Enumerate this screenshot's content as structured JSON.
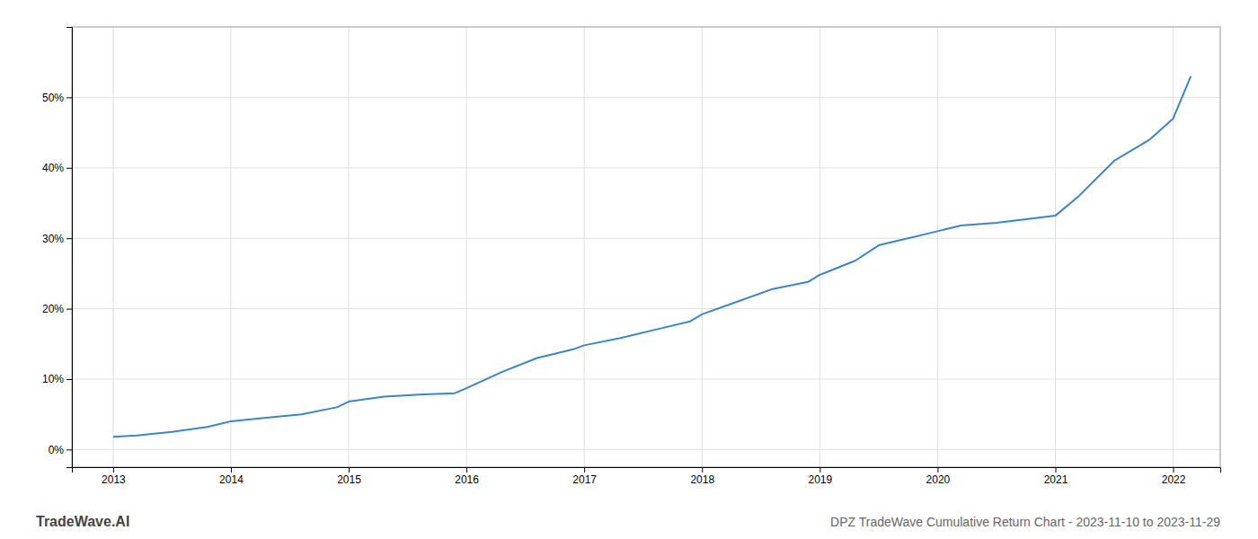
{
  "chart_data": {
    "type": "line",
    "title": "DPZ TradeWave Cumulative Return Chart - 2023-11-10 to 2023-11-29",
    "annotations": [
      "TradeWave.AI"
    ],
    "color": "#3a86c8",
    "grid": true,
    "x": [
      2013.0,
      2013.2,
      2013.5,
      2013.8,
      2014.0,
      2014.3,
      2014.6,
      2014.9,
      2015.0,
      2015.3,
      2015.6,
      2015.9,
      2016.0,
      2016.3,
      2016.6,
      2016.9,
      2017.0,
      2017.3,
      2017.6,
      2017.9,
      2018.0,
      2018.3,
      2018.6,
      2018.9,
      2019.0,
      2019.3,
      2019.5,
      2019.7,
      2020.0,
      2020.2,
      2020.5,
      2020.8,
      2021.0,
      2021.2,
      2021.5,
      2021.8,
      2022.0,
      2022.15
    ],
    "values": [
      0.018,
      0.02,
      0.025,
      0.032,
      0.04,
      0.045,
      0.05,
      0.06,
      0.068,
      0.075,
      0.078,
      0.08,
      0.087,
      0.11,
      0.13,
      0.142,
      0.148,
      0.158,
      0.17,
      0.182,
      0.192,
      0.21,
      0.228,
      0.238,
      0.248,
      0.268,
      0.29,
      0.298,
      0.31,
      0.318,
      0.322,
      0.328,
      0.332,
      0.36,
      0.41,
      0.44,
      0.47,
      0.53
    ],
    "xlim": [
      2012.65,
      2022.4
    ],
    "xticks": [
      2013,
      2014,
      2015,
      2016,
      2017,
      2018,
      2019,
      2020,
      2021,
      2022
    ],
    "ylim": [
      -0.025,
      0.6
    ],
    "yticks": [
      {
        "value": 0.0,
        "label": "0%"
      },
      {
        "value": 0.1,
        "label": "10%"
      },
      {
        "value": 0.2,
        "label": "20%"
      },
      {
        "value": 0.3,
        "label": "30%"
      },
      {
        "value": 0.4,
        "label": "40%"
      },
      {
        "value": 0.5,
        "label": "50%"
      }
    ]
  }
}
